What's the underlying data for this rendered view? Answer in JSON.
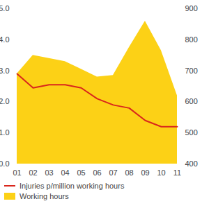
{
  "chart_data": {
    "type": "line",
    "categories": [
      "01",
      "02",
      "03",
      "04",
      "05",
      "06",
      "07",
      "08",
      "09",
      "10",
      "11"
    ],
    "series": [
      {
        "name": "Injuries p/million working hours",
        "type": "line",
        "color": "#d9261c",
        "values": [
          2.9,
          2.45,
          2.55,
          2.55,
          2.45,
          2.1,
          1.9,
          1.8,
          1.4,
          1.2,
          1.2
        ]
      },
      {
        "name": "Working hours",
        "type": "area",
        "color": "#fcd116",
        "axis": "y2",
        "values": [
          690,
          750,
          740,
          730,
          705,
          680,
          685,
          775,
          860,
          765,
          620
        ]
      }
    ],
    "ylim": [
      0,
      5
    ],
    "yticks": [
      0,
      1,
      2,
      3,
      4,
      5
    ],
    "y2lim": [
      400,
      900
    ],
    "y2ticks": [
      400,
      500,
      600,
      700,
      800,
      900
    ],
    "grid": false,
    "legend": "bottom"
  }
}
